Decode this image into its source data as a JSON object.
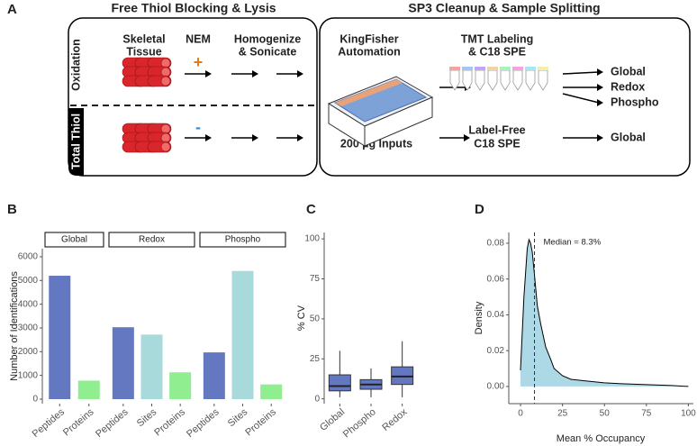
{
  "diagram": {
    "panel": "A",
    "left_title": "Free Thiol Blocking & Lysis",
    "right_title": "SP3 Cleanup & Sample Splitting",
    "rows": [
      "Oxidation",
      "Total Thiol"
    ],
    "tissue": [
      "Skeletal",
      "Tissue"
    ],
    "reagent": "NEM",
    "plus": "+",
    "minus": "-",
    "lysis": [
      "Homogenize",
      "& Sonicate"
    ],
    "automation": [
      "KingFisher",
      "Automation"
    ],
    "inputs": "200 µg Inputs",
    "tmt": [
      "TMT Labeling",
      "& C18 SPE"
    ],
    "labelfree": [
      "Label-Free",
      "C18 SPE"
    ],
    "outputs_top": [
      "Global",
      "Redox",
      "Phospho"
    ],
    "output_bottom": "Global"
  },
  "chart_data": [
    {
      "type": "bar",
      "panel": "B",
      "y_label": "Number of Identifications",
      "ylim": [
        -190,
        6340
      ],
      "yticks": [
        0,
        1000,
        2000,
        3000,
        4000,
        5000,
        6000
      ],
      "facets": [
        {
          "name": "Global",
          "categories": [
            "Peptides",
            "Proteins"
          ],
          "values": [
            5200,
            780
          ],
          "colors": [
            "#6478c2",
            "#90ee90"
          ]
        },
        {
          "name": "Redox",
          "categories": [
            "Peptides",
            "Sites",
            "Proteins"
          ],
          "values": [
            3030,
            2720,
            1130
          ],
          "colors": [
            "#6478c2",
            "#a8dadc",
            "#90ee90"
          ]
        },
        {
          "name": "Phospho",
          "categories": [
            "Peptides",
            "Sites",
            "Proteins"
          ],
          "values": [
            1970,
            5400,
            620
          ],
          "colors": [
            "#6478c2",
            "#a8dadc",
            "#90ee90"
          ]
        }
      ]
    },
    {
      "type": "box",
      "panel": "C",
      "y_label": "% CV",
      "ylim": [
        -3,
        104
      ],
      "yticks": [
        0,
        25,
        50,
        75,
        100
      ],
      "color": "#6478c2",
      "categories": [
        "Global",
        "Phospho",
        "Redox"
      ],
      "whisker_low": [
        1,
        1,
        1
      ],
      "q1": [
        5,
        6,
        9
      ],
      "median": [
        8,
        9,
        14
      ],
      "q3": [
        15,
        12,
        20
      ],
      "whisker_high": [
        30,
        19,
        36
      ]
    },
    {
      "type": "area",
      "panel": "D",
      "x_label": "Mean % Occupancy",
      "y_label": "Density",
      "xlim": [
        -7,
        103
      ],
      "ylim": [
        -0.0096,
        0.086
      ],
      "xticks": [
        0,
        25,
        50,
        75,
        100
      ],
      "yticks": [
        {
          "value": 0,
          "label": "0.00"
        },
        0.02,
        0.04,
        0.06,
        0.08
      ],
      "color": "#add8e6",
      "x": [
        0,
        2,
        4,
        5,
        6,
        7,
        8,
        10,
        12,
        15,
        18,
        20,
        25,
        30,
        40,
        50,
        60,
        75,
        90,
        100
      ],
      "values": [
        0.009,
        0.05,
        0.077,
        0.082,
        0.08,
        0.075,
        0.065,
        0.045,
        0.035,
        0.022,
        0.015,
        0.01,
        0.006,
        0.004,
        0.003,
        0.002,
        0.0015,
        0.001,
        0.0005,
        0
      ],
      "median": 8.3,
      "annotation": "Median = 8.3%"
    }
  ]
}
